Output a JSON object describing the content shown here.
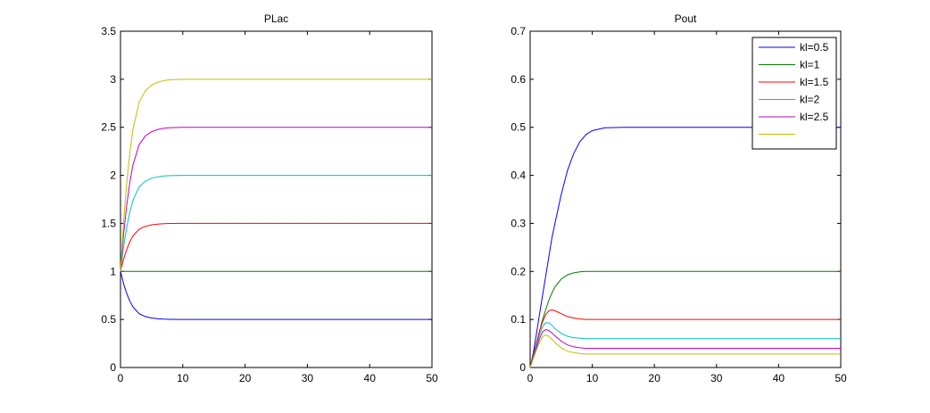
{
  "chart_data": [
    {
      "type": "line",
      "title": "PLac",
      "xlabel": "",
      "ylabel": "",
      "xlim": [
        0,
        50
      ],
      "ylim": [
        0,
        3.5
      ],
      "xticks": [
        0,
        10,
        20,
        30,
        40,
        50
      ],
      "yticks": [
        0,
        0.5,
        1,
        1.5,
        2,
        2.5,
        3,
        3.5
      ],
      "xtick_labels": [
        "0",
        "10",
        "20",
        "30",
        "40",
        "50"
      ],
      "ytick_labels": [
        "0",
        "0.5",
        "1",
        "1.5",
        "2",
        "2.5",
        "3",
        "3.5"
      ],
      "grid": false,
      "x": [
        0,
        0.5,
        1,
        1.5,
        2,
        3,
        4,
        5,
        6,
        7,
        8,
        10,
        15,
        20,
        30,
        40,
        50
      ],
      "series": [
        {
          "color": "#0000ff",
          "values": [
            1.0,
            0.87,
            0.77,
            0.69,
            0.63,
            0.56,
            0.53,
            0.515,
            0.507,
            0.503,
            0.501,
            0.5,
            0.5,
            0.5,
            0.5,
            0.5,
            0.5
          ]
        },
        {
          "color": "#007f00",
          "values": [
            1.0,
            1.0,
            1.0,
            1.0,
            1.0,
            1.0,
            1.0,
            1.0,
            1.0,
            1.0,
            1.0,
            1.0,
            1.0,
            1.0,
            1.0,
            1.0,
            1.0
          ]
        },
        {
          "color": "#ff0000",
          "values": [
            1.0,
            1.13,
            1.23,
            1.31,
            1.37,
            1.44,
            1.47,
            1.485,
            1.493,
            1.497,
            1.499,
            1.5,
            1.5,
            1.5,
            1.5,
            1.5,
            1.5
          ]
        },
        {
          "color": "#00bfbf",
          "values": [
            1.0,
            1.26,
            1.46,
            1.62,
            1.74,
            1.88,
            1.94,
            1.97,
            1.985,
            1.993,
            1.997,
            2.0,
            2.0,
            2.0,
            2.0,
            2.0,
            2.0
          ]
        },
        {
          "color": "#bf00bf",
          "values": [
            1.0,
            1.39,
            1.69,
            1.93,
            2.11,
            2.32,
            2.41,
            2.455,
            2.478,
            2.49,
            2.496,
            2.5,
            2.5,
            2.5,
            2.5,
            2.5,
            2.5
          ]
        },
        {
          "color": "#bfbf00",
          "values": [
            1.0,
            1.52,
            1.92,
            2.24,
            2.48,
            2.76,
            2.88,
            2.94,
            2.97,
            2.987,
            2.995,
            3.0,
            3.0,
            3.0,
            3.0,
            3.0,
            3.0
          ]
        }
      ]
    },
    {
      "type": "line",
      "title": "Pout",
      "xlabel": "",
      "ylabel": "",
      "xlim": [
        0,
        50
      ],
      "ylim": [
        0,
        0.7
      ],
      "xticks": [
        0,
        10,
        20,
        30,
        40,
        50
      ],
      "yticks": [
        0,
        0.1,
        0.2,
        0.3,
        0.4,
        0.5,
        0.6,
        0.7
      ],
      "xtick_labels": [
        "0",
        "10",
        "20",
        "30",
        "40",
        "50"
      ],
      "ytick_labels": [
        "0",
        "0.1",
        "0.2",
        "0.3",
        "0.4",
        "0.5",
        "0.6",
        "0.7"
      ],
      "grid": false,
      "legend_position": "top-right",
      "x": [
        0,
        0.5,
        1,
        1.5,
        2,
        2.5,
        3,
        3.5,
        4,
        5,
        6,
        7,
        8,
        9,
        10,
        12,
        15,
        20,
        30,
        40,
        50
      ],
      "series": [
        {
          "name": "kl=0.5",
          "color": "#0000ff",
          "values": [
            0,
            0.03,
            0.07,
            0.11,
            0.15,
            0.19,
            0.23,
            0.27,
            0.3,
            0.36,
            0.41,
            0.445,
            0.47,
            0.485,
            0.493,
            0.499,
            0.5,
            0.5,
            0.5,
            0.5,
            0.5
          ]
        },
        {
          "name": "kl=1",
          "color": "#007f00",
          "values": [
            0,
            0.025,
            0.05,
            0.075,
            0.1,
            0.12,
            0.14,
            0.155,
            0.168,
            0.184,
            0.193,
            0.197,
            0.199,
            0.2,
            0.2,
            0.2,
            0.2,
            0.2,
            0.2,
            0.2,
            0.2
          ]
        },
        {
          "name": "kl=1.5",
          "color": "#ff0000",
          "values": [
            0,
            0.025,
            0.05,
            0.075,
            0.095,
            0.11,
            0.118,
            0.12,
            0.118,
            0.112,
            0.106,
            0.103,
            0.101,
            0.1,
            0.1,
            0.1,
            0.1,
            0.1,
            0.1,
            0.1,
            0.1
          ]
        },
        {
          "name": "kl=2",
          "color": "#00bfbf",
          "values": [
            0,
            0.022,
            0.045,
            0.068,
            0.085,
            0.093,
            0.093,
            0.088,
            0.081,
            0.071,
            0.065,
            0.062,
            0.061,
            0.06,
            0.06,
            0.06,
            0.06,
            0.06,
            0.06,
            0.06,
            0.06
          ]
        },
        {
          "name": "kl=2.5",
          "color": "#bf00bf",
          "values": [
            0,
            0.02,
            0.04,
            0.06,
            0.074,
            0.079,
            0.077,
            0.072,
            0.066,
            0.055,
            0.047,
            0.043,
            0.041,
            0.04,
            0.04,
            0.04,
            0.04,
            0.04,
            0.04,
            0.04,
            0.04
          ]
        },
        {
          "name": "",
          "color": "#bfbf00",
          "values": [
            0,
            0.018,
            0.036,
            0.052,
            0.064,
            0.068,
            0.065,
            0.059,
            0.052,
            0.041,
            0.034,
            0.031,
            0.029,
            0.028,
            0.028,
            0.028,
            0.028,
            0.028,
            0.028,
            0.028,
            0.028
          ]
        }
      ]
    }
  ]
}
